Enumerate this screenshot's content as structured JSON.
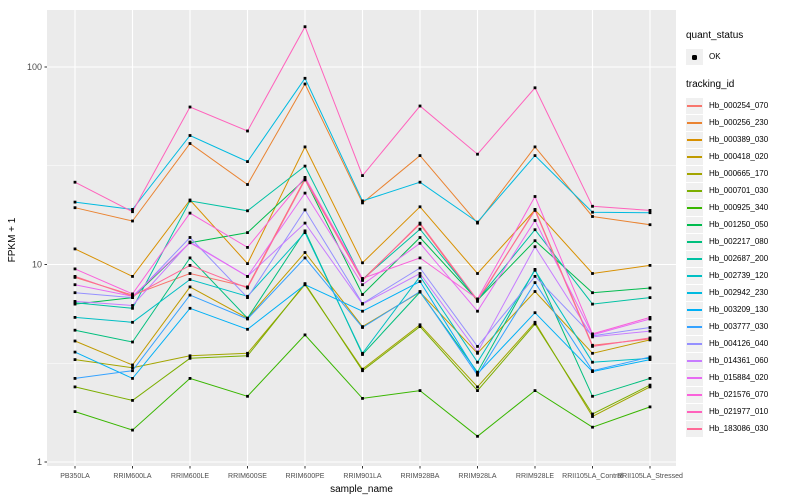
{
  "panel": {
    "fill": "#EBEBEB",
    "grid_color": "#FFFFFF",
    "tick_color": "#333333",
    "tick_label_color": "#4D4D4D",
    "point_color": "#000000"
  },
  "legend": {
    "quant_status_title": "quant_status",
    "quant_status_items": [
      {
        "label": "OK",
        "marker": "black-square-point"
      }
    ],
    "tracking_id_title": "tracking_id",
    "key_fill": "#F0F0F0"
  },
  "chart_data": {
    "type": "line",
    "title": "",
    "xlabel": "sample_name",
    "ylabel": "FPKM + 1",
    "yscale": "log10",
    "ylim": [
      0.91,
      195
    ],
    "y_ticks": [
      100,
      10,
      1
    ],
    "y_minor": [
      31.62,
      3.162
    ],
    "grid": true,
    "legend_position": "right",
    "point_marker": "small black square",
    "x": [
      "PB350LA",
      "RRIM600LA",
      "RRIM600LE",
      "RRIM600SE",
      "RRIM600PE",
      "RRIM901LA",
      "RRIM928BA",
      "RRIM928LA",
      "RRIM928LE",
      "RRII105LA_Control",
      "RRII105LA_Stressed"
    ],
    "series": [
      {
        "name": "Hb_000254_070",
        "color": "#F8766D",
        "values": [
          8.6,
          7.0,
          9.0,
          7.7,
          27.2,
          8.4,
          16.0,
          6.5,
          19.0,
          3.9,
          4.2
        ]
      },
      {
        "name": "Hb_000256_230",
        "color": "#EA8331",
        "values": [
          19.4,
          16.6,
          41.0,
          25.4,
          82.0,
          20.5,
          35.6,
          16.2,
          39.4,
          17.5,
          15.9
        ]
      },
      {
        "name": "Hb_000389_030",
        "color": "#D89000",
        "values": [
          12.0,
          8.7,
          21.2,
          10.1,
          39.4,
          10.2,
          19.6,
          9.0,
          18.9,
          9.0,
          9.9
        ]
      },
      {
        "name": "Hb_000418_020",
        "color": "#C09B00",
        "values": [
          4.1,
          3.1,
          7.7,
          5.35,
          11.5,
          4.85,
          7.25,
          3.55,
          7.3,
          3.55,
          4.15
        ]
      },
      {
        "name": "Hb_000665_170",
        "color": "#A3A500",
        "values": [
          3.3,
          3.0,
          3.45,
          3.55,
          7.9,
          2.95,
          4.95,
          2.4,
          5.1,
          1.7,
          2.4
        ]
      },
      {
        "name": "Hb_000701_030",
        "color": "#7CAE00",
        "values": [
          2.4,
          2.05,
          3.35,
          3.45,
          8.0,
          2.9,
          4.85,
          2.3,
          5.0,
          1.75,
          2.45
        ]
      },
      {
        "name": "Hb_000925_340",
        "color": "#39B600",
        "values": [
          1.8,
          1.45,
          2.65,
          2.15,
          4.4,
          2.1,
          2.3,
          1.35,
          2.3,
          1.5,
          1.9
        ]
      },
      {
        "name": "Hb_001250_050",
        "color": "#00BB4E",
        "values": [
          6.3,
          6.8,
          12.9,
          14.5,
          27.0,
          7.05,
          13.7,
          6.6,
          13.2,
          7.2,
          7.6
        ]
      },
      {
        "name": "Hb_002217_080",
        "color": "#00BF7D",
        "values": [
          4.65,
          4.05,
          10.8,
          5.35,
          14.8,
          3.5,
          7.25,
          2.85,
          9.45,
          2.15,
          2.65
        ]
      },
      {
        "name": "Hb_002687_200",
        "color": "#00C1A3",
        "values": [
          6.4,
          6.0,
          21.0,
          18.7,
          31.5,
          8.4,
          15.1,
          6.6,
          15.0,
          6.3,
          6.8
        ]
      },
      {
        "name": "Hb_002739_120",
        "color": "#00BFC4",
        "values": [
          5.4,
          5.1,
          8.4,
          6.9,
          14.5,
          3.55,
          8.7,
          3.2,
          9.35,
          3.2,
          3.35
        ]
      },
      {
        "name": "Hb_002942_230",
        "color": "#00BAE0",
        "values": [
          20.7,
          19.0,
          45.0,
          33.2,
          87.7,
          21.0,
          26.1,
          16.4,
          35.6,
          18.4,
          18.3
        ]
      },
      {
        "name": "Hb_003209_130",
        "color": "#00B0F6",
        "values": [
          3.6,
          2.65,
          6.0,
          4.7,
          7.9,
          5.8,
          8.2,
          2.8,
          5.7,
          2.87,
          3.3
        ]
      },
      {
        "name": "Hb_003777_030",
        "color": "#35A2FF",
        "values": [
          2.65,
          2.9,
          7.0,
          5.3,
          10.8,
          4.8,
          7.3,
          2.75,
          8.1,
          2.9,
          3.4
        ]
      },
      {
        "name": "Hb_004126_040",
        "color": "#9590FF",
        "values": [
          7.2,
          6.8,
          13.7,
          6.8,
          18.9,
          6.35,
          9.6,
          3.85,
          8.7,
          4.35,
          4.8
        ]
      },
      {
        "name": "Hb_014361_060",
        "color": "#C77CFF",
        "values": [
          6.5,
          6.2,
          13.0,
          8.7,
          16.2,
          6.3,
          9.0,
          3.6,
          12.3,
          4.3,
          4.6
        ]
      },
      {
        "name": "Hb_015884_020",
        "color": "#E76BF3",
        "values": [
          7.9,
          6.9,
          12.9,
          8.7,
          23.0,
          7.9,
          12.8,
          5.8,
          16.7,
          4.4,
          5.3
        ]
      },
      {
        "name": "Hb_021576_070",
        "color": "#FA62DB",
        "values": [
          9.5,
          7.1,
          18.2,
          12.2,
          27.6,
          8.5,
          10.8,
          6.7,
          22.1,
          4.45,
          5.4
        ]
      },
      {
        "name": "Hb_021977_010",
        "color": "#FF62BC",
        "values": [
          26.1,
          18.5,
          62.7,
          47.4,
          160.0,
          28.2,
          63.5,
          36.2,
          78.5,
          19.7,
          18.8
        ]
      },
      {
        "name": "Hb_183086_030",
        "color": "#FF6A98",
        "values": [
          8.7,
          6.9,
          9.9,
          7.6,
          26.8,
          8.3,
          16.2,
          6.6,
          18.8,
          3.85,
          4.25
        ]
      }
    ]
  }
}
